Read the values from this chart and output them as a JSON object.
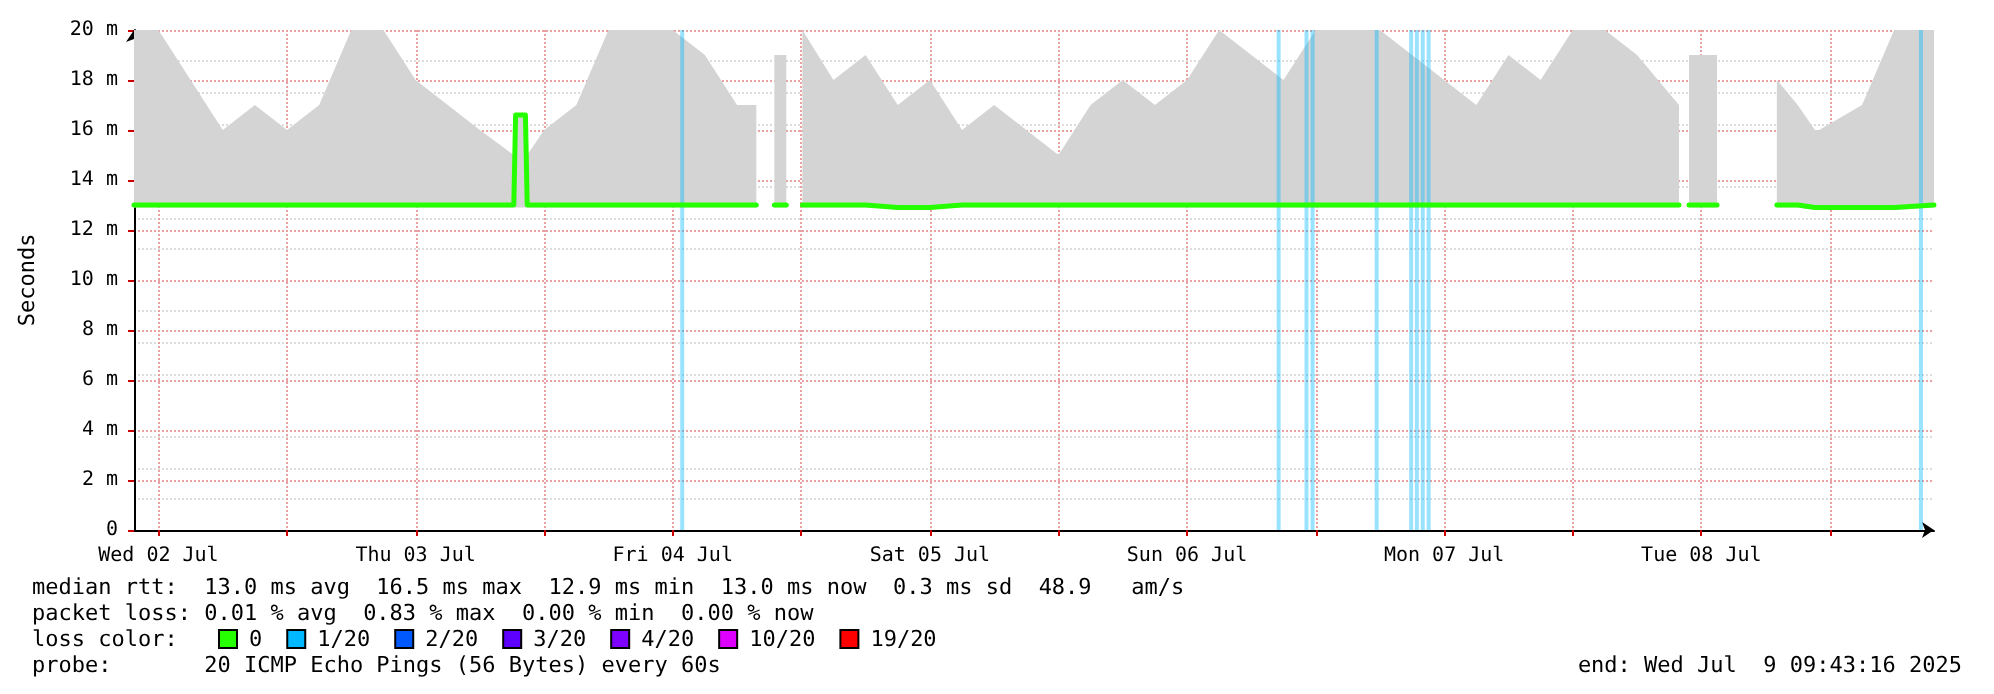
{
  "chart_data": {
    "type": "line",
    "ylabel": "Seconds",
    "xlim": [
      "2025-07-02T09:43",
      "2025-07-09T09:43"
    ],
    "xticks": [
      {
        "value": "2025-07-02T12:00",
        "label": "Wed 02 Jul"
      },
      {
        "value": "2025-07-03T00:00",
        "label": null
      },
      {
        "value": "2025-07-03T12:00",
        "label": "Thu 03 Jul"
      },
      {
        "value": "2025-07-04T00:00",
        "label": null
      },
      {
        "value": "2025-07-04T12:00",
        "label": "Fri 04 Jul"
      },
      {
        "value": "2025-07-05T00:00",
        "label": null
      },
      {
        "value": "2025-07-05T12:00",
        "label": "Sat 05 Jul"
      },
      {
        "value": "2025-07-06T00:00",
        "label": null
      },
      {
        "value": "2025-07-06T12:00",
        "label": "Sun 06 Jul"
      },
      {
        "value": "2025-07-07T00:00",
        "label": null
      },
      {
        "value": "2025-07-07T12:00",
        "label": "Mon 07 Jul"
      },
      {
        "value": "2025-07-08T00:00",
        "label": null
      },
      {
        "value": "2025-07-08T12:00",
        "label": "Tue 08 Jul"
      },
      {
        "value": "2025-07-09T00:00",
        "label": null
      }
    ],
    "ylim": [
      0,
      20
    ],
    "yticks": [
      0,
      {
        "value": 2,
        "label": "2 m"
      },
      {
        "value": 4,
        "label": "4 m"
      },
      {
        "value": 6,
        "label": "6 m"
      },
      {
        "value": 8,
        "label": "8 m"
      },
      {
        "value": 10,
        "label": "10 m"
      },
      {
        "value": 12,
        "label": "12 m"
      },
      {
        "value": 14,
        "label": "14 m"
      },
      {
        "value": 16,
        "label": "16 m"
      },
      {
        "value": 18,
        "label": "18 m"
      },
      {
        "value": 20,
        "label": "20 m"
      }
    ],
    "grid": true,
    "legend": "bottom left",
    "legend_title": "loss color:",
    "marker": "none",
    "line_style": "solid",
    "series": [
      {
        "name": "0",
        "color": "#26ff00",
        "x": [
          "2025-07-02T09:43",
          "2025-07-02T12:00",
          "2025-07-02T15:00",
          "2025-07-02T18:00",
          "2025-07-02T21:00",
          "2025-07-03T00:00",
          "2025-07-03T03:00",
          "2025-07-03T06:00",
          "2025-07-03T09:00",
          "2025-07-03T12:00",
          "2025-07-03T15:00",
          "2025-07-03T18:00",
          "2025-07-03T21:10",
          "2025-07-03T21:20",
          "2025-07-03T22:15",
          "2025-07-03T22:25",
          "2025-07-04T00:00",
          "2025-07-04T03:00",
          "2025-07-04T06:00",
          "2025-07-04T09:00",
          "2025-07-04T12:00",
          "2025-07-04T15:00",
          "2025-07-04T18:00",
          "2025-07-04T19:48",
          "2025-07-04T20:30",
          "2025-07-04T21:29",
          "2025-07-04T22:36",
          "2025-07-04T23:20",
          "2025-07-05T00:06",
          "2025-07-05T03:00",
          "2025-07-05T06:00",
          "2025-07-05T09:00",
          "2025-07-05T12:00",
          "2025-07-05T15:00",
          "2025-07-05T18:00",
          "2025-07-05T21:00",
          "2025-07-06T00:00",
          "2025-07-06T03:00",
          "2025-07-06T06:00",
          "2025-07-06T09:00",
          "2025-07-06T12:00",
          "2025-07-06T15:00",
          "2025-07-06T18:00",
          "2025-07-06T21:00",
          "2025-07-07T00:00",
          "2025-07-07T03:00",
          "2025-07-07T06:00",
          "2025-07-07T09:00",
          "2025-07-07T12:00",
          "2025-07-07T15:00",
          "2025-07-07T18:00",
          "2025-07-07T21:00",
          "2025-07-08T00:00",
          "2025-07-08T03:00",
          "2025-07-08T06:00",
          "2025-07-08T09:55",
          "2025-07-08T10:20",
          "2025-07-08T10:51",
          "2025-07-08T13:28",
          "2025-07-08T16:00",
          "2025-07-08T19:03",
          "2025-07-08T21:00",
          "2025-07-08T22:36",
          "2025-07-08T23:00",
          "2025-07-09T03:00",
          "2025-07-09T06:00",
          "2025-07-09T09:43"
        ],
        "values": [
          13,
          13,
          13,
          13,
          13,
          13,
          13,
          13,
          13,
          13,
          13,
          13,
          13,
          16.6,
          16.6,
          13,
          13,
          13,
          13,
          13,
          13,
          13,
          13,
          13,
          null,
          13,
          13,
          null,
          13,
          13,
          13,
          12.9,
          12.9,
          13,
          13,
          13,
          13,
          13,
          13,
          13,
          13,
          13,
          13,
          13,
          13,
          13,
          13,
          13,
          13,
          13,
          13,
          13,
          13,
          13,
          13,
          13,
          null,
          13,
          13,
          null,
          13,
          13,
          12.9,
          12.9,
          12.9,
          12.9,
          13
        ],
        "lower": [
          12.9,
          12.9,
          12.9,
          12.9,
          12.9,
          12.9,
          12.9,
          12.9,
          12.9,
          12.9,
          12.9,
          12.9,
          12.9,
          12.9,
          12.9,
          12.9,
          12.9,
          12.9,
          12.9,
          12.9,
          12.9,
          12.9,
          12.9,
          12.9,
          null,
          12.9,
          12.9,
          null,
          12.9,
          12.9,
          12.9,
          12.9,
          12.9,
          12.9,
          12.9,
          12.9,
          12.9,
          12.9,
          12.9,
          12.9,
          12.9,
          12.9,
          12.9,
          12.9,
          12.9,
          12.9,
          12.9,
          12.9,
          12.9,
          12.9,
          12.9,
          12.9,
          12.9,
          12.9,
          12.9,
          12.9,
          null,
          12.9,
          12.9,
          null,
          12.9,
          12.9,
          12.8,
          12.8,
          12.8,
          12.8,
          12.9
        ],
        "upper": [
          20,
          20,
          18,
          16,
          17,
          16,
          17,
          20,
          20,
          18,
          17,
          16,
          15,
          16.6,
          16.6,
          15,
          16,
          17,
          20,
          20,
          20,
          19,
          17,
          17,
          null,
          19,
          19,
          null,
          20,
          18,
          19,
          17,
          18,
          16,
          17,
          16,
          15,
          17,
          18,
          17,
          18,
          20,
          19,
          18,
          20,
          20,
          20,
          19,
          18,
          17,
          19,
          18,
          20,
          20,
          19,
          17,
          null,
          19,
          19,
          null,
          18,
          17,
          16,
          16,
          17,
          20,
          20
        ]
      },
      {
        "name": "1/20",
        "color": "#00b8ff",
        "type": "bar",
        "x": [
          "2025-07-04T12:53",
          "2025-07-06T20:33",
          "2025-07-06T23:09",
          "2025-07-06T23:43",
          "2025-07-07T05:42",
          "2025-07-07T08:55",
          "2025-07-07T09:27",
          "2025-07-07T10:00",
          "2025-07-07T10:33",
          "2025-07-09T08:30"
        ],
        "values": [
          20,
          20,
          20,
          20,
          20,
          20,
          20,
          20,
          20,
          20
        ]
      },
      {
        "name": "2/20",
        "color": "#0059ff",
        "type": "bar"
      },
      {
        "name": "3/20",
        "color": "#5e00ff",
        "type": "bar"
      },
      {
        "name": "4/20",
        "color": "#7e00ff",
        "type": "bar"
      },
      {
        "name": "10/20",
        "color": "#dd00ff",
        "type": "bar"
      },
      {
        "name": "19/20",
        "color": "#ff0000",
        "type": "bar"
      }
    ],
    "annotations": [
      "median rtt:  13.0 ms avg  16.5 ms max  12.9 ms min  13.0 ms now  0.3 ms sd  48.9   am/s",
      "packet loss: 0.01 % avg  0.83 % max  0.00 % min  0.00 % now",
      "probe:       20 ICMP Echo Pings (56 Bytes) every 60s",
      "end: Wed Jul  9 09:43:16 2025"
    ]
  }
}
